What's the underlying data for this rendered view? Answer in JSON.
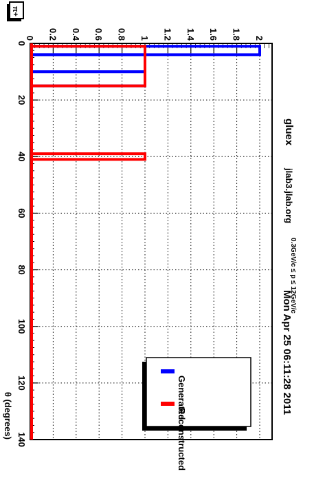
{
  "header": {
    "particle_label": "π+",
    "experiment": "gluex",
    "host": "jlab3.jlab.org",
    "cut_label": "0.3GeV/c ≤ p ≤ 12GeV/c",
    "timestamp": "Mon Apr 25 06:11:28 2011"
  },
  "chart_data": {
    "type": "bar",
    "xlabel": "θ (degrees)",
    "ylabel": "",
    "xlim": [
      0,
      140
    ],
    "ylim": [
      0,
      2.1
    ],
    "x_ticks": [
      "0",
      "20",
      "40",
      "60",
      "80",
      "100",
      "120",
      "140"
    ],
    "y_ticks": [
      "0",
      "0.2",
      "0.4",
      "0.6",
      "0.8",
      "1",
      "1.2",
      "1.4",
      "1.6",
      "1.8",
      "2"
    ],
    "grid": true,
    "legend_position": "bottom-right",
    "series": [
      {
        "name": "Generated",
        "color": "#0000ff",
        "bins": [
          {
            "x0": 1,
            "x1": 4,
            "value": 2
          },
          {
            "x0": 4,
            "x1": 10,
            "value": 1
          },
          {
            "x0": 10,
            "x1": 15,
            "value": 1
          }
        ]
      },
      {
        "name": "Reconstructed",
        "color": "#ff0000",
        "bins": [
          {
            "x0": 1,
            "x1": 15,
            "value": 1
          },
          {
            "x0": 39,
            "x1": 41,
            "value": 1
          }
        ]
      }
    ]
  }
}
